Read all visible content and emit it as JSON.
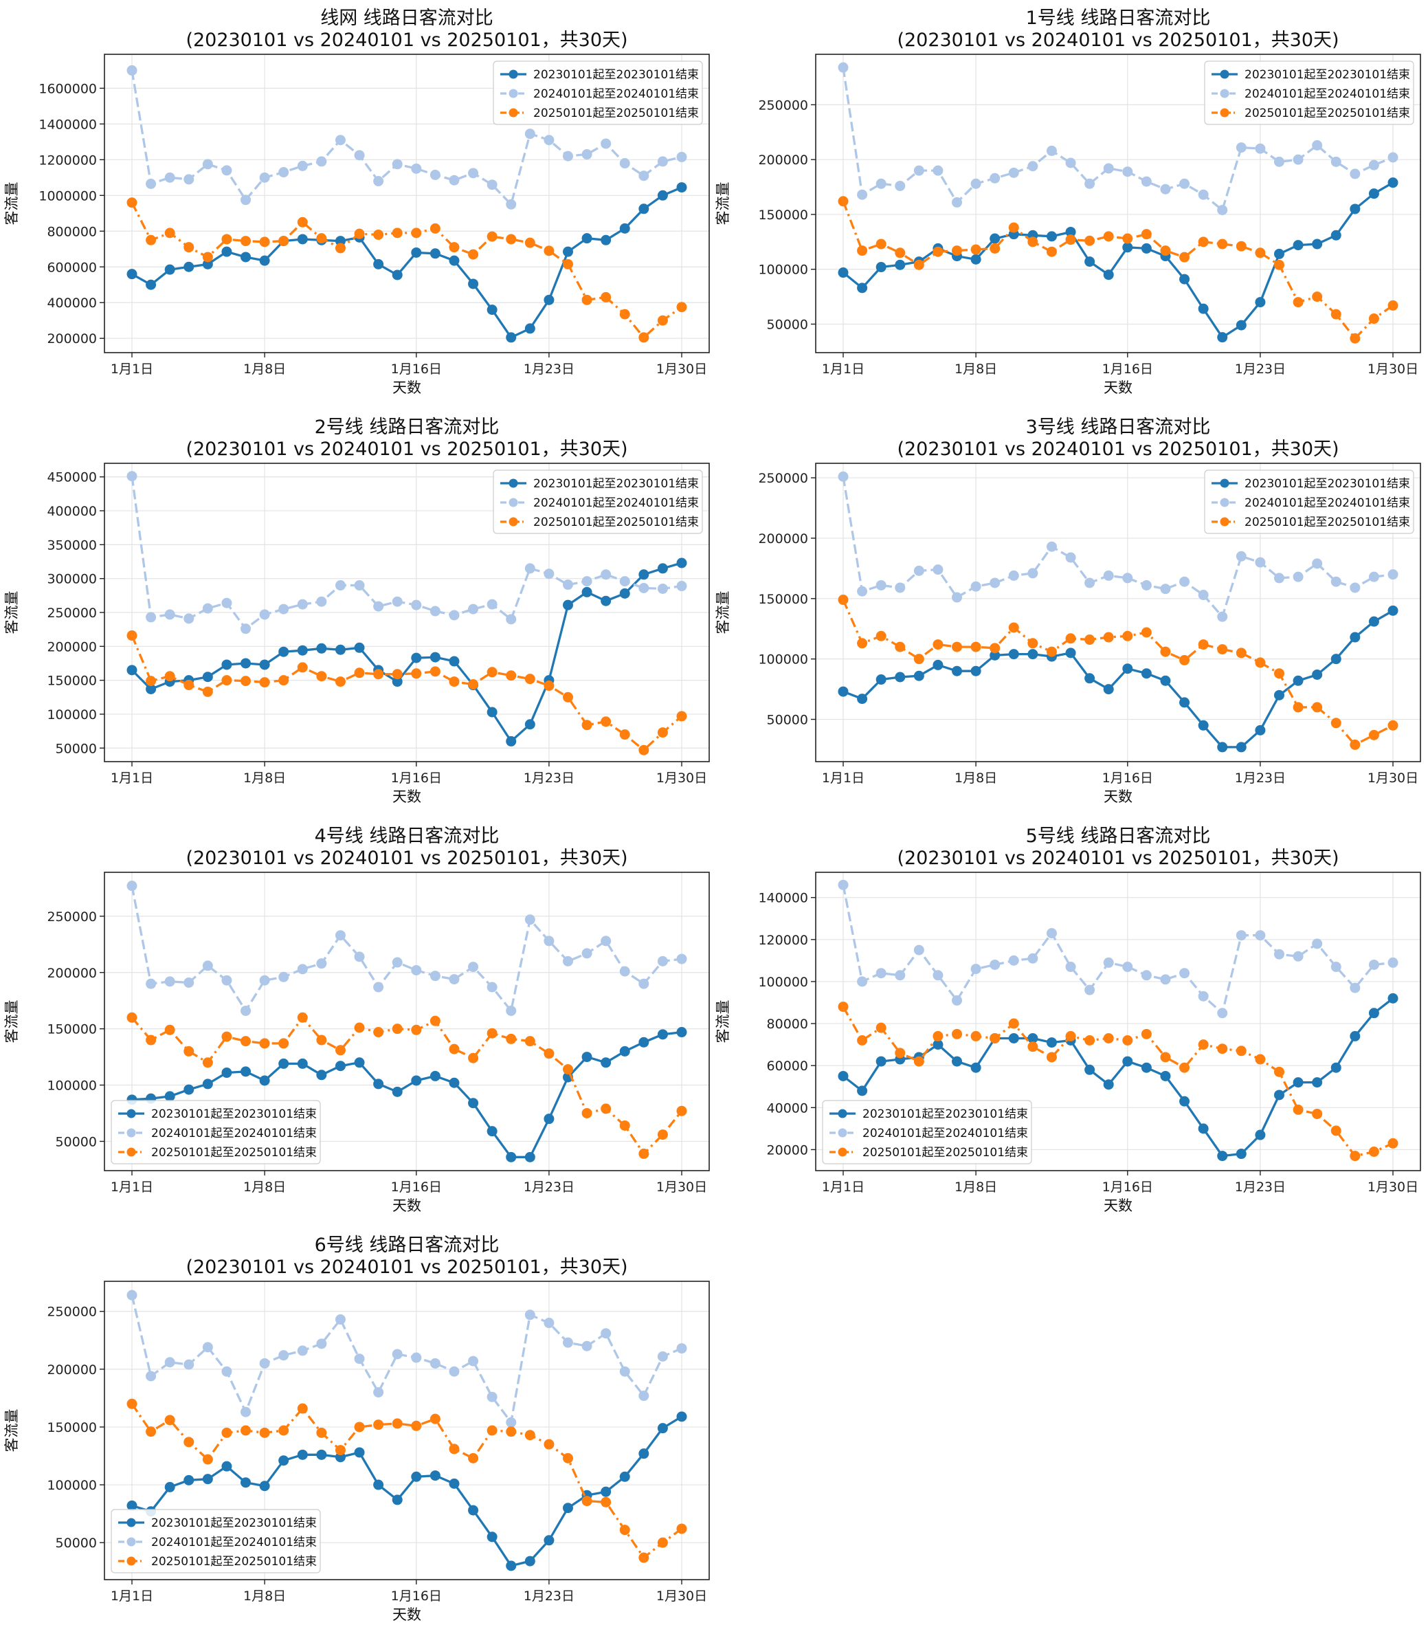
{
  "chart_data": [
    {
      "type": "line",
      "title": "线网 线路日客流对比",
      "subtitle": "(20230101 vs 20240101 vs 20250101，共30天)",
      "xlabel": "天数",
      "ylabel": "客流量",
      "xticks": [
        "1月1日",
        "1月8日",
        "1月16日",
        "1月23日",
        "1月30日"
      ],
      "ylim": [
        120000,
        1790000
      ],
      "yticks": [
        200000,
        400000,
        600000,
        800000,
        1000000,
        1200000,
        1400000,
        1600000
      ],
      "legend_position": "top-right",
      "series": [
        {
          "name": "20230101起至20230101结束",
          "color": "#1f77b4",
          "style": "solid",
          "values": [
            560000,
            500000,
            585000,
            600000,
            615000,
            685000,
            655000,
            635000,
            745000,
            755000,
            750000,
            745000,
            765000,
            615000,
            555000,
            680000,
            675000,
            635000,
            505000,
            360000,
            205000,
            255000,
            415000,
            685000,
            760000,
            750000,
            815000,
            925000,
            1000000,
            1045000
          ]
        },
        {
          "name": "20240101起至20240101结束",
          "color": "#aec7e8",
          "style": "dashed",
          "values": [
            1700000,
            1065000,
            1100000,
            1090000,
            1175000,
            1140000,
            975000,
            1100000,
            1130000,
            1165000,
            1190000,
            1310000,
            1225000,
            1080000,
            1175000,
            1150000,
            1115000,
            1085000,
            1125000,
            1060000,
            950000,
            1345000,
            1310000,
            1220000,
            1230000,
            1290000,
            1180000,
            1110000,
            1190000,
            1215000
          ]
        },
        {
          "name": "20250101起至20250101结束",
          "color": "#ff7f0e",
          "style": "dashdot",
          "values": [
            960000,
            750000,
            790000,
            710000,
            655000,
            755000,
            745000,
            740000,
            745000,
            850000,
            760000,
            705000,
            785000,
            780000,
            790000,
            790000,
            815000,
            710000,
            670000,
            770000,
            755000,
            735000,
            690000,
            615000,
            415000,
            430000,
            335000,
            205000,
            300000,
            375000
          ]
        }
      ]
    },
    {
      "type": "line",
      "title": "1号线 线路日客流对比",
      "subtitle": "(20230101 vs 20240101 vs 20250101，共30天)",
      "xlabel": "天数",
      "ylabel": "客流量",
      "xticks": [
        "1月1日",
        "1月8日",
        "1月16日",
        "1月23日",
        "1月30日"
      ],
      "ylim": [
        24000,
        296000
      ],
      "yticks": [
        50000,
        100000,
        150000,
        200000,
        250000
      ],
      "legend_position": "top-right",
      "series": [
        {
          "name": "20230101起至20230101结束",
          "color": "#1f77b4",
          "style": "solid",
          "values": [
            97000,
            83000,
            102000,
            104000,
            107000,
            119000,
            112000,
            109000,
            128000,
            132000,
            131000,
            130000,
            134000,
            107000,
            95000,
            120000,
            119000,
            112000,
            91000,
            64000,
            38000,
            49000,
            70000,
            114000,
            122000,
            123000,
            131000,
            155000,
            169000,
            179000
          ]
        },
        {
          "name": "20240101起至20240101结束",
          "color": "#aec7e8",
          "style": "dashed",
          "values": [
            284000,
            168000,
            178000,
            176000,
            190000,
            190000,
            161000,
            178000,
            183000,
            188000,
            194000,
            208000,
            197000,
            178000,
            192000,
            189000,
            180000,
            173000,
            178000,
            168000,
            154000,
            211000,
            210000,
            198000,
            200000,
            213000,
            198000,
            187000,
            195000,
            202000
          ]
        },
        {
          "name": "20250101起至20250101结束",
          "color": "#ff7f0e",
          "style": "dashdot",
          "values": [
            162000,
            117000,
            123000,
            115000,
            104000,
            116000,
            117000,
            118000,
            119000,
            138000,
            125000,
            116000,
            127000,
            126000,
            130000,
            128000,
            132000,
            117000,
            111000,
            125000,
            123000,
            121000,
            115000,
            104000,
            70000,
            75000,
            59000,
            37000,
            55000,
            67000
          ]
        }
      ]
    },
    {
      "type": "line",
      "title": "2号线 线路日客流对比",
      "subtitle": "(20230101 vs 20240101 vs 20250101，共30天)",
      "xlabel": "天数",
      "ylabel": "客流量",
      "xticks": [
        "1月1日",
        "1月8日",
        "1月16日",
        "1月23日",
        "1月30日"
      ],
      "ylim": [
        30000,
        470000
      ],
      "yticks": [
        50000,
        100000,
        150000,
        200000,
        250000,
        300000,
        350000,
        400000,
        450000
      ],
      "legend_position": "top-right",
      "series": [
        {
          "name": "20230101起至20230101结束",
          "color": "#1f77b4",
          "style": "solid",
          "values": [
            165000,
            137000,
            148000,
            150000,
            155000,
            173000,
            175000,
            173000,
            192000,
            194000,
            197000,
            195000,
            198000,
            165000,
            148000,
            183000,
            184000,
            178000,
            143000,
            103000,
            60000,
            85000,
            150000,
            261000,
            280000,
            267000,
            278000,
            306000,
            315000,
            323000
          ]
        },
        {
          "name": "20240101起至20240101结束",
          "color": "#aec7e8",
          "style": "dashed",
          "values": [
            451000,
            243000,
            247000,
            241000,
            256000,
            264000,
            226000,
            247000,
            255000,
            262000,
            266000,
            290000,
            290000,
            259000,
            266000,
            261000,
            252000,
            246000,
            255000,
            262000,
            240000,
            315000,
            307000,
            291000,
            296000,
            306000,
            296000,
            286000,
            285000,
            289000
          ]
        },
        {
          "name": "20250101起至20250101结束",
          "color": "#ff7f0e",
          "style": "dashdot",
          "values": [
            216000,
            149000,
            156000,
            143000,
            133000,
            150000,
            149000,
            147000,
            150000,
            169000,
            156000,
            148000,
            161000,
            159000,
            159000,
            160000,
            163000,
            148000,
            144000,
            162000,
            157000,
            152000,
            142000,
            125000,
            84000,
            89000,
            70000,
            47000,
            73000,
            97000
          ]
        }
      ]
    },
    {
      "type": "line",
      "title": "3号线 线路日客流对比",
      "subtitle": "(20230101 vs 20240101 vs 20250101，共30天)",
      "xlabel": "天数",
      "ylabel": "客流量",
      "xticks": [
        "1月1日",
        "1月8日",
        "1月16日",
        "1月23日",
        "1月30日"
      ],
      "ylim": [
        15000,
        262000
      ],
      "yticks": [
        50000,
        100000,
        150000,
        200000,
        250000
      ],
      "legend_position": "top-right",
      "series": [
        {
          "name": "20230101起至20230101结束",
          "color": "#1f77b4",
          "style": "solid",
          "values": [
            73000,
            67000,
            83000,
            85000,
            86000,
            95000,
            90000,
            90000,
            103000,
            104000,
            104000,
            102000,
            105000,
            84000,
            75000,
            92000,
            88000,
            82000,
            64000,
            45000,
            27000,
            27000,
            41000,
            70000,
            82000,
            87000,
            100000,
            118000,
            131000,
            140000
          ]
        },
        {
          "name": "20240101起至20240101结束",
          "color": "#aec7e8",
          "style": "dashed",
          "values": [
            251000,
            156000,
            161000,
            159000,
            173000,
            174000,
            151000,
            160000,
            163000,
            169000,
            171000,
            193000,
            184000,
            163000,
            169000,
            167000,
            161000,
            158000,
            164000,
            153000,
            135000,
            185000,
            180000,
            167000,
            168000,
            179000,
            164000,
            159000,
            168000,
            170000
          ]
        },
        {
          "name": "20250101起至20250101结束",
          "color": "#ff7f0e",
          "style": "dashdot",
          "values": [
            149000,
            113000,
            119000,
            110000,
            100000,
            112000,
            110000,
            110000,
            109000,
            126000,
            113000,
            106000,
            117000,
            116000,
            118000,
            119000,
            122000,
            106000,
            99000,
            112000,
            108000,
            105000,
            97000,
            88000,
            60000,
            60000,
            47000,
            29000,
            37000,
            45000
          ]
        }
      ]
    },
    {
      "type": "line",
      "title": "4号线 线路日客流对比",
      "subtitle": "(20230101 vs 20240101 vs 20250101，共30天)",
      "xlabel": "天数",
      "ylabel": "客流量",
      "xticks": [
        "1月1日",
        "1月8日",
        "1月16日",
        "1月23日",
        "1月30日"
      ],
      "ylim": [
        24000,
        289000
      ],
      "yticks": [
        50000,
        100000,
        150000,
        200000,
        250000
      ],
      "legend_position": "lower-left",
      "series": [
        {
          "name": "20230101起至20230101结束",
          "color": "#1f77b4",
          "style": "solid",
          "values": [
            87000,
            88000,
            90000,
            96000,
            101000,
            111000,
            112000,
            104000,
            119000,
            119000,
            109000,
            117000,
            120000,
            101000,
            94000,
            104000,
            108000,
            102000,
            84000,
            59000,
            36000,
            36000,
            70000,
            107000,
            125000,
            120000,
            130000,
            138000,
            145000,
            147000
          ]
        },
        {
          "name": "20240101起至20240101结束",
          "color": "#aec7e8",
          "style": "dashed",
          "values": [
            277000,
            190000,
            192000,
            191000,
            206000,
            193000,
            166000,
            193000,
            196000,
            203000,
            208000,
            233000,
            214000,
            187000,
            209000,
            202000,
            197000,
            194000,
            205000,
            187000,
            166000,
            247000,
            228000,
            210000,
            217000,
            228000,
            201000,
            190000,
            210000,
            212000
          ]
        },
        {
          "name": "20250101起至20250101结束",
          "color": "#ff7f0e",
          "style": "dashdot",
          "values": [
            160000,
            140000,
            149000,
            130000,
            120000,
            143000,
            139000,
            137000,
            137000,
            160000,
            140000,
            131000,
            151000,
            147000,
            150000,
            149000,
            157000,
            132000,
            124000,
            146000,
            141000,
            139000,
            128000,
            114000,
            75000,
            79000,
            64000,
            39000,
            56000,
            77000
          ]
        }
      ]
    },
    {
      "type": "line",
      "title": "5号线 线路日客流对比",
      "subtitle": "(20230101 vs 20240101 vs 20250101，共30天)",
      "xlabel": "天数",
      "ylabel": "客流量",
      "xticks": [
        "1月1日",
        "1月8日",
        "1月16日",
        "1月23日",
        "1月30日"
      ],
      "ylim": [
        10000,
        152000
      ],
      "yticks": [
        20000,
        40000,
        60000,
        80000,
        100000,
        120000,
        140000
      ],
      "legend_position": "lower-left",
      "series": [
        {
          "name": "20230101起至20230101结束",
          "color": "#1f77b4",
          "style": "solid",
          "values": [
            55000,
            48000,
            62000,
            63000,
            64000,
            70000,
            62000,
            59000,
            73000,
            73000,
            73000,
            71000,
            72000,
            58000,
            51000,
            62000,
            59000,
            55000,
            43000,
            30000,
            17000,
            18000,
            27000,
            46000,
            52000,
            52000,
            59000,
            74000,
            85000,
            92000
          ]
        },
        {
          "name": "20240101起至20240101结束",
          "color": "#aec7e8",
          "style": "dashed",
          "values": [
            146000,
            100000,
            104000,
            103000,
            115000,
            103000,
            91000,
            106000,
            108000,
            110000,
            111000,
            123000,
            107000,
            96000,
            109000,
            107000,
            103000,
            101000,
            104000,
            93000,
            85000,
            122000,
            122000,
            113000,
            112000,
            118000,
            107000,
            97000,
            108000,
            109000
          ]
        },
        {
          "name": "20250101起至20250101结束",
          "color": "#ff7f0e",
          "style": "dashdot",
          "values": [
            88000,
            72000,
            78000,
            66000,
            62000,
            74000,
            75000,
            74000,
            73000,
            80000,
            69000,
            64000,
            74000,
            72000,
            73000,
            72000,
            75000,
            64000,
            59000,
            70000,
            68000,
            67000,
            63000,
            57000,
            39000,
            37000,
            29000,
            17000,
            19000,
            23000
          ]
        }
      ]
    },
    {
      "type": "line",
      "title": "6号线 线路日客流对比",
      "subtitle": "(20230101 vs 20240101 vs 20250101，共30天)",
      "xlabel": "天数",
      "ylabel": "客流量",
      "xticks": [
        "1月1日",
        "1月8日",
        "1月16日",
        "1月23日",
        "1月30日"
      ],
      "ylim": [
        18000,
        276000
      ],
      "yticks": [
        50000,
        100000,
        150000,
        200000,
        250000
      ],
      "legend_position": "lower-left",
      "series": [
        {
          "name": "20230101起至20230101结束",
          "color": "#1f77b4",
          "style": "solid",
          "values": [
            82000,
            77000,
            98000,
            104000,
            105000,
            116000,
            102000,
            99000,
            121000,
            126000,
            126000,
            124000,
            128000,
            100000,
            87000,
            107000,
            108000,
            101000,
            78000,
            55000,
            30000,
            34000,
            52000,
            80000,
            91000,
            94000,
            107000,
            127000,
            149000,
            159000
          ]
        },
        {
          "name": "20240101起至20240101结束",
          "color": "#aec7e8",
          "style": "dashed",
          "values": [
            264000,
            194000,
            206000,
            204000,
            219000,
            198000,
            163000,
            205000,
            212000,
            216000,
            222000,
            243000,
            209000,
            180000,
            213000,
            210000,
            205000,
            198000,
            207000,
            176000,
            154000,
            247000,
            240000,
            223000,
            220000,
            231000,
            198000,
            177000,
            211000,
            218000
          ]
        },
        {
          "name": "20250101起至20250101结束",
          "color": "#ff7f0e",
          "style": "dashdot",
          "values": [
            170000,
            146000,
            156000,
            137000,
            122000,
            145000,
            147000,
            145000,
            147000,
            166000,
            145000,
            130000,
            150000,
            152000,
            153000,
            151000,
            157000,
            131000,
            123000,
            147000,
            146000,
            143000,
            135000,
            123000,
            86000,
            85000,
            61000,
            37000,
            50000,
            62000
          ]
        }
      ]
    }
  ]
}
